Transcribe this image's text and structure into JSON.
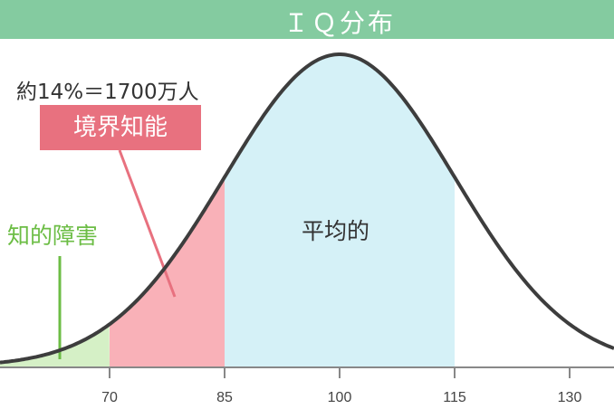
{
  "title": "ＩＱ分布",
  "annotations": {
    "borderline_stat": "約14%＝1700万人",
    "borderline_label": "境界知能",
    "disability_label": "知的障害",
    "average_label": "平均的"
  },
  "colors": {
    "header": "#84cba0",
    "disability": "#d5f0c6",
    "borderline": "#f9b1b8",
    "average": "#d5f1f7",
    "borderline_tag": "#e8717f",
    "disability_text": "#6cbd45",
    "curve": "#3d3d3d"
  },
  "chart_data": {
    "type": "area",
    "distribution": "normal",
    "mean": 100,
    "sd": 15,
    "xlim": [
      55.7,
      135.7
    ],
    "xticks": [
      "70",
      "85",
      "100",
      "115",
      "130"
    ],
    "regions": [
      {
        "label": "知的障害",
        "from": 55.7,
        "to": 70
      },
      {
        "label": "境界知能",
        "from": 70,
        "to": 85
      },
      {
        "label": "平均的",
        "from": 85,
        "to": 115
      }
    ]
  }
}
